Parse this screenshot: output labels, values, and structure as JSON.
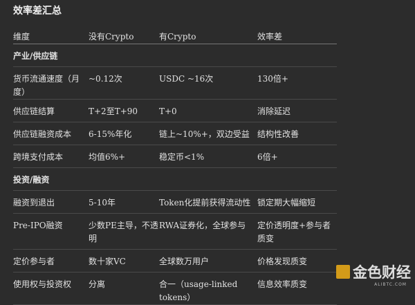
{
  "title": "效率差汇总",
  "table": {
    "headers": [
      "维度",
      "没有Crypto",
      "有Crypto",
      "效率差"
    ],
    "rows": [
      {
        "type": "section",
        "cells": [
          "产业/供应链",
          "",
          "",
          ""
        ]
      },
      {
        "type": "row",
        "cells": [
          "货币流通速度（月度）",
          "~0.12次",
          "USDC ~16次",
          "130倍+"
        ]
      },
      {
        "type": "row",
        "cells": [
          "供应链结算",
          "T+2至T+90",
          "T+0",
          "消除延迟"
        ]
      },
      {
        "type": "row",
        "cells": [
          "供应链融资成本",
          "6-15%年化",
          "链上~10%+，双边受益",
          "结构性改善"
        ]
      },
      {
        "type": "row",
        "cells": [
          "跨境支付成本",
          "均值6%+",
          "稳定币<1%",
          "6倍+"
        ]
      },
      {
        "type": "section",
        "cells": [
          "投资/融资",
          "",
          "",
          ""
        ]
      },
      {
        "type": "row",
        "cells": [
          "融资到退出",
          "5-10年",
          "Token化提前获得流动性",
          "锁定期大幅缩短"
        ]
      },
      {
        "type": "tall",
        "cells": [
          "Pre-IPO融资",
          "少数PE主导，不透明",
          "RWA证券化，全球参与",
          "定价透明度+参与者质变"
        ]
      },
      {
        "type": "row",
        "cells": [
          "定价参与者",
          "数十家VC",
          "全球数万用户",
          "价格发现质变"
        ]
      },
      {
        "type": "row",
        "cells": [
          "使用权与投资权",
          "分离",
          "合一（usage-linked tokens）",
          "信息效率质变"
        ]
      }
    ]
  },
  "watermark": {
    "text": "金色财经",
    "sub": "ALIBTC.COM"
  }
}
